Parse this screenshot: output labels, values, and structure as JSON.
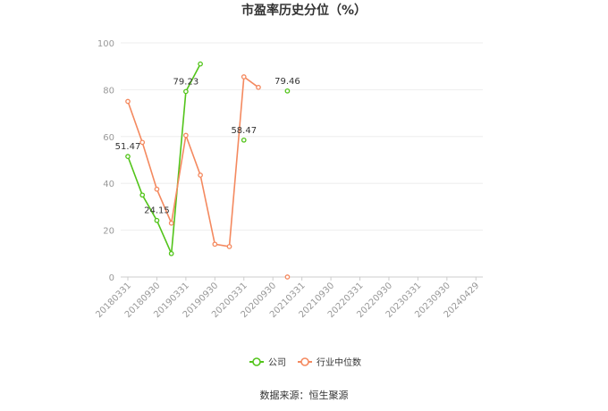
{
  "chart_data": {
    "type": "line",
    "title": "市盈率历史分位（%）",
    "xlabel": "",
    "ylabel": "",
    "ylim": [
      0,
      100
    ],
    "yticks": [
      0,
      20,
      40,
      60,
      80,
      100
    ],
    "grid": true,
    "legend_position": "bottom",
    "categories": [
      "20180331",
      "20180930",
      "20190331",
      "20190930",
      "20200331",
      "20200930",
      "20210331",
      "20210930",
      "20220331",
      "20220930",
      "20230331",
      "20230930",
      "20240429"
    ],
    "x": [
      "20180331",
      "20180630",
      "20180930",
      "20181231",
      "20190331",
      "20190630",
      "20190930",
      "20191231",
      "20200331",
      "20200630",
      "20200930",
      "20240429"
    ],
    "series": [
      {
        "name": "公司",
        "color": "#52c41a",
        "segments": [
          [
            [
              0,
              51.47
            ],
            [
              1,
              35.0
            ],
            [
              2,
              24.15
            ],
            [
              3,
              10.0
            ],
            [
              4,
              79.23
            ],
            [
              5,
              91.0
            ]
          ],
          [
            [
              8,
              58.47
            ]
          ],
          [
            [
              11,
              79.46
            ]
          ]
        ],
        "labels": [
          {
            "point": [
              0,
              51.47
            ],
            "text": "51.47"
          },
          {
            "point": [
              2,
              24.15
            ],
            "text": "24.15"
          },
          {
            "point": [
              4,
              79.23
            ],
            "text": "79.23"
          },
          {
            "point": [
              8,
              58.47
            ],
            "text": "58.47"
          },
          {
            "point": [
              11,
              79.46
            ],
            "text": "79.46"
          }
        ]
      },
      {
        "name": "行业中位数",
        "color": "#f4895f",
        "segments": [
          [
            [
              0,
              75.0
            ],
            [
              1,
              57.5
            ],
            [
              2,
              37.5
            ],
            [
              3,
              23.0
            ],
            [
              4,
              60.5
            ],
            [
              5,
              43.5
            ],
            [
              6,
              14.0
            ],
            [
              7,
              13.0
            ],
            [
              8,
              85.5
            ],
            [
              9,
              81.0
            ]
          ],
          [
            [
              11,
              0.0
            ]
          ]
        ],
        "labels": []
      }
    ]
  },
  "footer": {
    "source": "数据来源：恒生聚源"
  }
}
